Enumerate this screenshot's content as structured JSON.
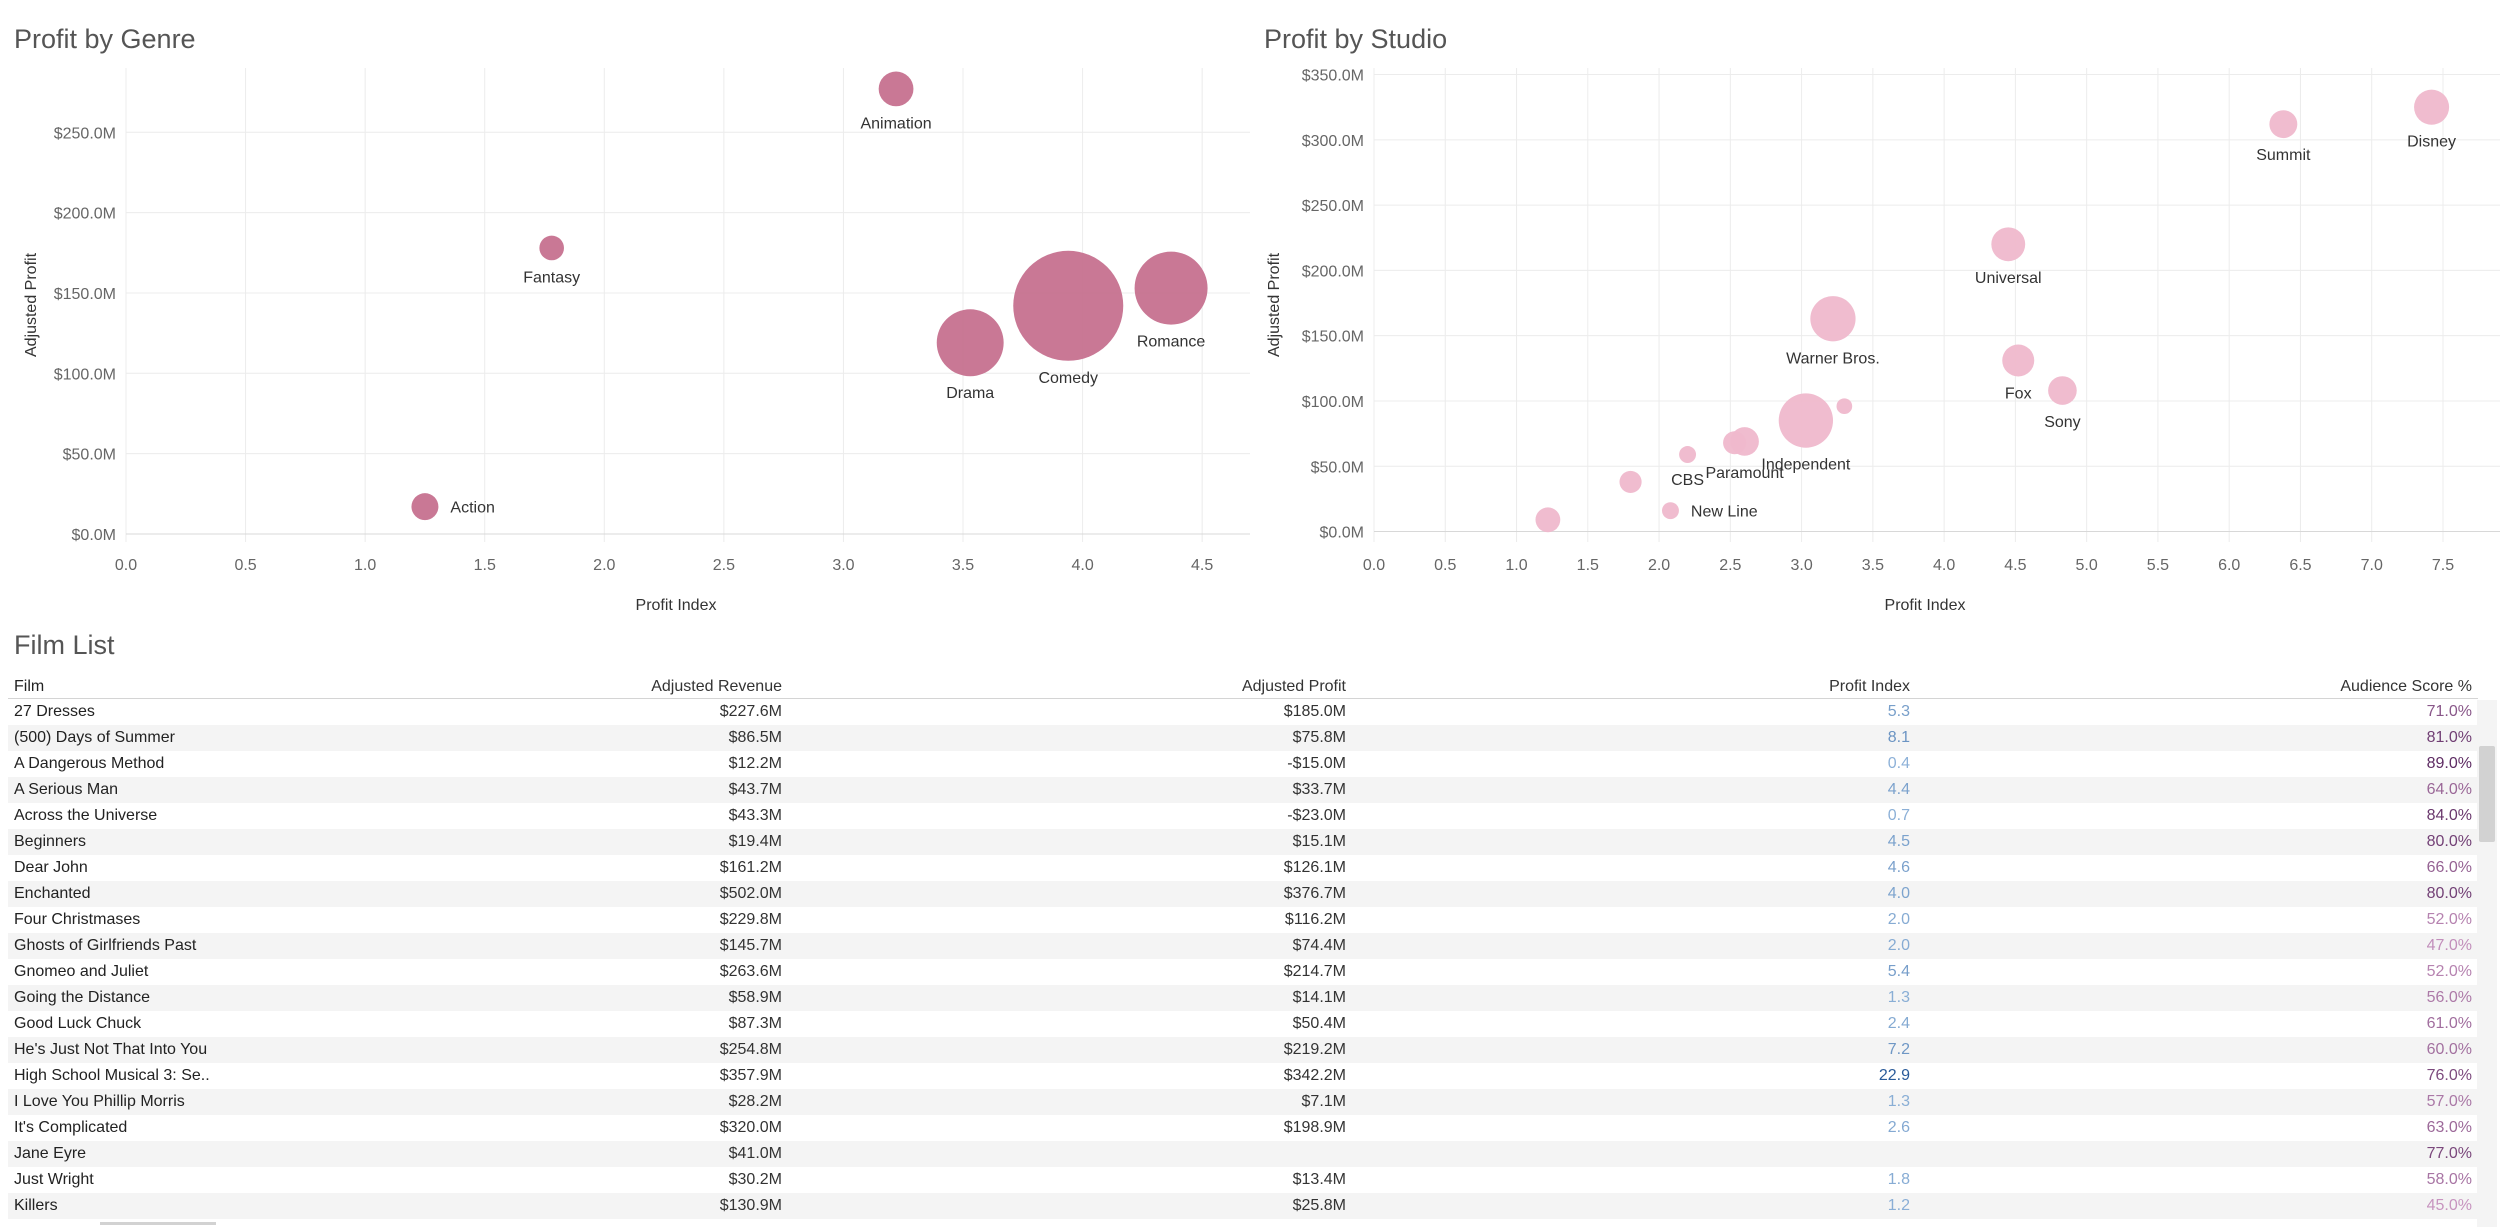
{
  "titles": {
    "genre_chart": "Profit by Genre",
    "studio_chart": "Profit by Studio",
    "film_list": "Film List"
  },
  "colors": {
    "genre_bubble": "#c6718f",
    "studio_bubble": "#efb8cc",
    "grid": "#ececec",
    "index_low": "#8fb3d9",
    "index_high": "#2a5b9a",
    "score_low": "#c794bf",
    "score_high": "#5e2c63"
  },
  "chart_data": [
    {
      "type": "scatter",
      "id": "genre",
      "title": "Profit by Genre",
      "xlabel": "Profit Index",
      "ylabel": "Adjusted Profit",
      "xlim": [
        0,
        4.7
      ],
      "ylim": [
        -5,
        290
      ],
      "xticks": [
        0.0,
        0.5,
        1.0,
        1.5,
        2.0,
        2.5,
        3.0,
        3.5,
        4.0,
        4.5
      ],
      "xtick_labels": [
        "0.0",
        "0.5",
        "1.0",
        "1.5",
        "2.0",
        "2.5",
        "3.0",
        "3.5",
        "4.0",
        "4.5"
      ],
      "yticks": [
        0,
        50,
        100,
        150,
        200,
        250
      ],
      "ytick_labels": [
        "$0.0M",
        "$50.0M",
        "$100.0M",
        "$150.0M",
        "$200.0M",
        "$250.0M"
      ],
      "points": [
        {
          "label": "Animation",
          "x": 3.22,
          "y": 277,
          "size": 0.1,
          "label_pos": "below"
        },
        {
          "label": "Fantasy",
          "x": 1.78,
          "y": 178,
          "size": 0.05,
          "label_pos": "below"
        },
        {
          "label": "Comedy",
          "x": 3.94,
          "y": 142,
          "size": 1.0,
          "label_pos": "below"
        },
        {
          "label": "Romance",
          "x": 4.37,
          "y": 153,
          "size": 0.44,
          "label_pos": "below"
        },
        {
          "label": "Drama",
          "x": 3.53,
          "y": 119,
          "size": 0.37,
          "label_pos": "below"
        },
        {
          "label": "Action",
          "x": 1.25,
          "y": 17,
          "size": 0.06,
          "label_pos": "right"
        }
      ]
    },
    {
      "type": "scatter",
      "id": "studio",
      "title": "Profit by Studio",
      "xlabel": "Profit Index",
      "ylabel": "Adjusted Profit",
      "xlim": [
        0,
        7.9
      ],
      "ylim": [
        -8,
        355
      ],
      "xticks": [
        0.0,
        0.5,
        1.0,
        1.5,
        2.0,
        2.5,
        3.0,
        3.5,
        4.0,
        4.5,
        5.0,
        5.5,
        6.0,
        6.5,
        7.0,
        7.5
      ],
      "xtick_labels": [
        "0.0",
        "0.5",
        "1.0",
        "1.5",
        "2.0",
        "2.5",
        "3.0",
        "3.5",
        "4.0",
        "4.5",
        "5.0",
        "5.5",
        "6.0",
        "6.5",
        "7.0",
        "7.5"
      ],
      "yticks": [
        0,
        50,
        100,
        150,
        200,
        250,
        300,
        350
      ],
      "ytick_labels": [
        "$0.0M",
        "$50.0M",
        "$100.0M",
        "$150.0M",
        "$200.0M",
        "$250.0M",
        "$300.0M",
        "$350.0M"
      ],
      "points": [
        {
          "label": "Disney",
          "x": 7.42,
          "y": 325,
          "size": 0.3,
          "label_pos": "below"
        },
        {
          "label": "Summit",
          "x": 6.38,
          "y": 312,
          "size": 0.19,
          "label_pos": "below"
        },
        {
          "label": "Universal",
          "x": 4.45,
          "y": 220,
          "size": 0.28,
          "label_pos": "below"
        },
        {
          "label": "Warner Bros.",
          "x": 3.22,
          "y": 163,
          "size": 0.5,
          "label_pos": "below"
        },
        {
          "label": "Fox",
          "x": 4.52,
          "y": 131,
          "size": 0.25,
          "label_pos": "below"
        },
        {
          "label": "Sony",
          "x": 4.83,
          "y": 108,
          "size": 0.2,
          "label_pos": "below"
        },
        {
          "label": "Independent",
          "x": 3.03,
          "y": 85,
          "size": 0.72,
          "label_pos": "below"
        },
        {
          "label": "",
          "x": 3.3,
          "y": 96,
          "size": 0.06,
          "label_pos": "none"
        },
        {
          "label": "Paramount",
          "x": 2.6,
          "y": 69,
          "size": 0.2,
          "label_pos": "below"
        },
        {
          "label": "",
          "x": 2.53,
          "y": 68,
          "size": 0.13,
          "label_pos": "none"
        },
        {
          "label": "CBS",
          "x": 2.2,
          "y": 59,
          "size": 0.07,
          "label_pos": "below"
        },
        {
          "label": "",
          "x": 1.8,
          "y": 38,
          "size": 0.12,
          "label_pos": "none"
        },
        {
          "label": "New Line",
          "x": 2.08,
          "y": 16,
          "size": 0.07,
          "label_pos": "right"
        },
        {
          "label": "",
          "x": 1.22,
          "y": 9,
          "size": 0.15,
          "label_pos": "none"
        }
      ]
    },
    {
      "type": "table",
      "id": "film_list",
      "title": "Film List",
      "columns": [
        "Film",
        "Adjusted Revenue",
        "Adjusted Profit",
        "Profit Index",
        "Audience Score %"
      ],
      "rows": [
        [
          "27 Dresses",
          "$227.6M",
          "$185.0M",
          "5.3",
          "71.0%"
        ],
        [
          "(500) Days of Summer",
          "$86.5M",
          "$75.8M",
          "8.1",
          "81.0%"
        ],
        [
          "A Dangerous Method",
          "$12.2M",
          "-$15.0M",
          "0.4",
          "89.0%"
        ],
        [
          "A Serious Man",
          "$43.7M",
          "$33.7M",
          "4.4",
          "64.0%"
        ],
        [
          "Across the Universe",
          "$43.3M",
          "-$23.0M",
          "0.7",
          "84.0%"
        ],
        [
          "Beginners",
          "$19.4M",
          "$15.1M",
          "4.5",
          "80.0%"
        ],
        [
          "Dear John",
          "$161.2M",
          "$126.1M",
          "4.6",
          "66.0%"
        ],
        [
          "Enchanted",
          "$502.0M",
          "$376.7M",
          "4.0",
          "80.0%"
        ],
        [
          "Four Christmases",
          "$229.8M",
          "$116.2M",
          "2.0",
          "52.0%"
        ],
        [
          "Ghosts of Girlfriends Past",
          "$145.7M",
          "$74.4M",
          "2.0",
          "47.0%"
        ],
        [
          "Gnomeo and Juliet",
          "$263.6M",
          "$214.7M",
          "5.4",
          "52.0%"
        ],
        [
          "Going the Distance",
          "$58.9M",
          "$14.1M",
          "1.3",
          "56.0%"
        ],
        [
          "Good Luck Chuck",
          "$87.3M",
          "$50.4M",
          "2.4",
          "61.0%"
        ],
        [
          "He's Just Not That Into You",
          "$254.8M",
          "$219.2M",
          "7.2",
          "60.0%"
        ],
        [
          "High School Musical 3: Se..",
          "$357.9M",
          "$342.2M",
          "22.9",
          "76.0%"
        ],
        [
          "I Love You Phillip Morris",
          "$28.2M",
          "$7.1M",
          "1.3",
          "57.0%"
        ],
        [
          "It's Complicated",
          "$320.0M",
          "$198.9M",
          "2.6",
          "63.0%"
        ],
        [
          "Jane Eyre",
          "$41.0M",
          "",
          "",
          "77.0%"
        ],
        [
          "Just Wright",
          "$30.2M",
          "$13.4M",
          "1.8",
          "58.0%"
        ],
        [
          "Killers",
          "$130.9M",
          "$25.8M",
          "1.2",
          "45.0%"
        ]
      ]
    }
  ]
}
